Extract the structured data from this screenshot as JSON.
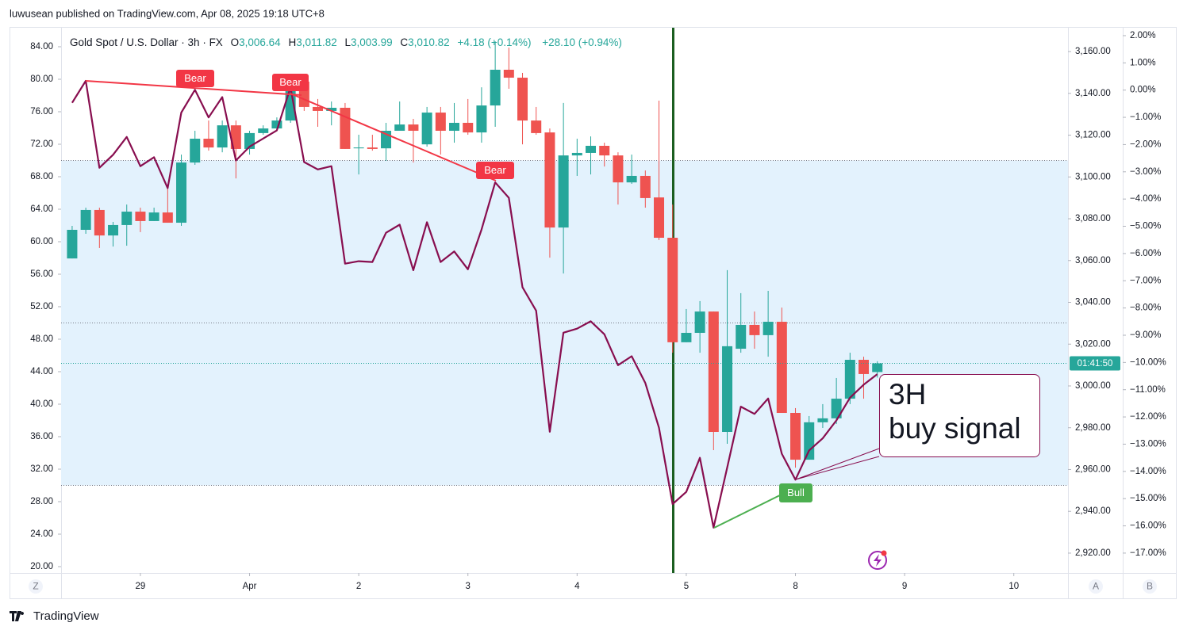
{
  "header": {
    "published": "luwusean published on TradingView.com, Apr 08, 2025 19:18 UTC+8"
  },
  "chart_data": [
    {
      "type": "candlestick",
      "title": "Gold Spot / U.S. Dollar · 3h · FX",
      "legend_values": [
        {
          "label": "O",
          "value": "3,006.64"
        },
        {
          "label": "H",
          "value": "3,011.82"
        },
        {
          "label": "L",
          "value": "3,003.99"
        },
        {
          "label": "C",
          "value": "3,010.82"
        }
      ],
      "change": "+4.18 (+0.14%)",
      "change_total": "+28.10 (+0.94%)",
      "countdown": "01:41:50",
      "up_color": "#26a69a",
      "down_color": "#ef5350",
      "x": [
        0,
        1,
        2,
        3,
        4,
        5,
        6,
        7,
        8,
        9,
        10,
        11,
        12,
        13,
        14,
        15,
        16,
        17,
        18,
        19,
        20,
        21,
        22,
        23,
        24,
        25,
        26,
        27,
        28,
        29,
        30,
        31,
        32,
        33,
        34,
        35,
        36,
        37,
        38,
        39,
        40,
        41,
        42,
        43,
        44,
        45,
        46,
        47,
        48,
        49,
        50,
        51,
        52,
        53,
        54,
        55,
        56,
        57,
        58,
        59
      ],
      "open": [
        3061.0,
        3074.7,
        3084.2,
        3072.0,
        3077.0,
        3083.4,
        3078.9,
        3083.0,
        3078.1,
        3106.9,
        3118.3,
        3114.1,
        3124.7,
        3113.4,
        3121.0,
        3123.2,
        3127.0,
        3145.6,
        3133.5,
        3131.6,
        3133.1,
        3113.7,
        3114.1,
        3113.7,
        3122.1,
        3125.1,
        3115.6,
        3130.8,
        3122.1,
        3125.9,
        3121.3,
        3134.2,
        3151.3,
        3147.5,
        3127.0,
        3121.3,
        3075.8,
        3110.3,
        3111.5,
        3114.9,
        3110.3,
        3097.4,
        3100.5,
        3090.2,
        3070.9,
        3020.9,
        3025.4,
        3035.6,
        2978.0,
        3017.8,
        3029.2,
        3024.3,
        3030.7,
        2987.1,
        2964.7,
        2982.6,
        2984.5,
        2993.9,
        3012.5,
        3006.64
      ],
      "high": [
        3076.6,
        3085.3,
        3085.3,
        3078.5,
        3086.8,
        3085.3,
        3085.3,
        3095.5,
        3110.7,
        3122.1,
        3127.0,
        3127.0,
        3127.0,
        3122.1,
        3124.7,
        3128.5,
        3148.6,
        3148.6,
        3137.3,
        3136.1,
        3135.4,
        3120.2,
        3120.2,
        3125.9,
        3136.1,
        3127.8,
        3133.5,
        3133.5,
        3135.4,
        3137.3,
        3142.9,
        3164.9,
        3161.9,
        3149.8,
        3133.5,
        3123.2,
        3135.4,
        3118.3,
        3119.4,
        3116.4,
        3111.8,
        3110.7,
        3103.1,
        3136.5,
        3086.8,
        3036.8,
        3040.6,
        3035.6,
        3055.4,
        3044.4,
        3035.6,
        3045.5,
        3037.5,
        2989.4,
        2985.6,
        2991.3,
        3003.8,
        3015.9,
        3014.0,
        3011.82
      ],
      "low": [
        3061.0,
        3072.8,
        3066.0,
        3066.7,
        3067.1,
        3073.6,
        3078.9,
        3078.1,
        3076.6,
        3105.8,
        3112.6,
        3111.8,
        3099.3,
        3110.7,
        3120.2,
        3122.1,
        3125.9,
        3131.6,
        3124.0,
        3124.7,
        3113.4,
        3101.2,
        3112.6,
        3107.7,
        3122.1,
        3106.9,
        3114.5,
        3110.7,
        3116.4,
        3120.2,
        3116.4,
        3124.0,
        3142.2,
        3115.6,
        3120.2,
        3061.4,
        3053.8,
        3100.5,
        3101.2,
        3105.0,
        3086.8,
        3096.7,
        3085.3,
        3069.8,
        3015.9,
        3020.9,
        3015.9,
        2969.3,
        2972.3,
        3015.9,
        3017.8,
        3014.0,
        2987.1,
        2960.9,
        2964.7,
        2979.9,
        2981.8,
        2991.3,
        2993.9,
        3003.99
      ],
      "close": [
        3074.7,
        3084.2,
        3072.0,
        3077.0,
        3083.4,
        3078.9,
        3083.0,
        3078.1,
        3106.9,
        3118.3,
        3114.1,
        3124.7,
        3113.4,
        3121.0,
        3123.2,
        3127.0,
        3145.6,
        3133.5,
        3131.6,
        3133.1,
        3113.4,
        3114.1,
        3113.4,
        3122.1,
        3125.1,
        3122.1,
        3130.8,
        3122.1,
        3125.9,
        3121.3,
        3134.2,
        3151.3,
        3147.5,
        3127.0,
        3121.0,
        3075.8,
        3110.3,
        3111.5,
        3114.9,
        3110.3,
        3097.4,
        3100.5,
        3089.9,
        3070.9,
        3020.9,
        3025.4,
        3035.6,
        2978.0,
        3019.0,
        3029.2,
        3024.3,
        3030.7,
        2987.1,
        2964.7,
        2982.6,
        2984.5,
        2993.9,
        3012.5,
        3005.7,
        3010.82
      ],
      "xlim": [
        -0.81,
        72.97
      ],
      "xticks": [
        {
          "value": 5,
          "label": "29"
        },
        {
          "value": 13,
          "label": "Apr"
        },
        {
          "value": 21,
          "label": "2"
        },
        {
          "value": 29,
          "label": "3"
        },
        {
          "value": 37,
          "label": "4"
        },
        {
          "value": 45,
          "label": "5"
        },
        {
          "value": 53,
          "label": "8"
        },
        {
          "value": 61,
          "label": "9"
        },
        {
          "value": 69,
          "label": "10"
        }
      ],
      "ylim": [
        2910.5,
        3171.4
      ],
      "yticks": [
        {
          "value": 2920,
          "label": "2,920.00"
        },
        {
          "value": 2940,
          "label": "2,940.00"
        },
        {
          "value": 2960,
          "label": "2,960.00"
        },
        {
          "value": 2980,
          "label": "2,980.00"
        },
        {
          "value": 3000,
          "label": "3,000.00"
        },
        {
          "value": 3020,
          "label": "3,020.00"
        },
        {
          "value": 3040,
          "label": "3,040.00"
        },
        {
          "value": 3060,
          "label": "3,060.00"
        },
        {
          "value": 3080,
          "label": "3,080.00"
        },
        {
          "value": 3100,
          "label": "3,100.00"
        },
        {
          "value": 3120,
          "label": "3,120.00"
        },
        {
          "value": 3140,
          "label": "3,140.00"
        },
        {
          "value": 3160,
          "label": "3,160.00"
        }
      ],
      "y2lim": [
        -17.73,
        2.29
      ],
      "y2ticks": [
        {
          "value": 2,
          "label": "2.00%"
        },
        {
          "value": 1,
          "label": "1.00%"
        },
        {
          "value": 0,
          "label": "0.00%"
        },
        {
          "value": -1,
          "label": "−1.00%"
        },
        {
          "value": -2,
          "label": "−2.00%"
        },
        {
          "value": -3,
          "label": "−3.00%"
        },
        {
          "value": -4,
          "label": "−4.00%"
        },
        {
          "value": -5,
          "label": "−5.00%"
        },
        {
          "value": -6,
          "label": "−6.00%"
        },
        {
          "value": -7,
          "label": "−7.00%"
        },
        {
          "value": -8,
          "label": "−8.00%"
        },
        {
          "value": -9,
          "label": "−9.00%"
        },
        {
          "value": -10,
          "label": "−10.00%"
        },
        {
          "value": -11,
          "label": "−11.00%"
        },
        {
          "value": -12,
          "label": "−12.00%"
        },
        {
          "value": -13,
          "label": "−13.00%"
        },
        {
          "value": -14,
          "label": "−14.00%"
        },
        {
          "value": -15,
          "label": "−15.00%"
        },
        {
          "value": -16,
          "label": "−16.00%"
        },
        {
          "value": -17,
          "label": "−17.00%"
        }
      ]
    },
    {
      "type": "line",
      "color": "#880e4f",
      "values": [
        77.1,
        79.8,
        69.1,
        70.7,
        72.9,
        69.3,
        70.4,
        66.6,
        75.9,
        78.7,
        75.3,
        77.8,
        70.0,
        71.7,
        72.7,
        73.7,
        79.0,
        69.8,
        68.9,
        69.3,
        57.3,
        57.6,
        57.5,
        61.1,
        62.1,
        56.5,
        62.4,
        57.5,
        58.8,
        56.6,
        61.5,
        67.3,
        65.4,
        54.4,
        51.5,
        36.6,
        48.8,
        49.3,
        50.2,
        48.6,
        44.8,
        45.9,
        42.6,
        37.1,
        27.7,
        29.2,
        33.4,
        24.8,
        32.2,
        39.7,
        38.8,
        40.7,
        33.9,
        30.7,
        34.3,
        35.8,
        38.0,
        40.8,
        42.4,
        43.7
      ],
      "levels": [
        30,
        50,
        70
      ],
      "band_color": "#e3f2fd",
      "ylim": [
        19.22,
        86.34
      ],
      "yticks": [
        {
          "value": 20,
          "label": "20.00"
        },
        {
          "value": 24,
          "label": "24.00"
        },
        {
          "value": 28,
          "label": "28.00"
        },
        {
          "value": 32,
          "label": "32.00"
        },
        {
          "value": 36,
          "label": "36.00"
        },
        {
          "value": 40,
          "label": "40.00"
        },
        {
          "value": 44,
          "label": "44.00"
        },
        {
          "value": 48,
          "label": "48.00"
        },
        {
          "value": 52,
          "label": "52.00"
        },
        {
          "value": 56,
          "label": "56.00"
        },
        {
          "value": 60,
          "label": "60.00"
        },
        {
          "value": 64,
          "label": "64.00"
        },
        {
          "value": 68,
          "label": "68.00"
        },
        {
          "value": 72,
          "label": "72.00"
        },
        {
          "value": 76,
          "label": "76.00"
        },
        {
          "value": 80,
          "label": "80.00"
        },
        {
          "value": 84,
          "label": "84.00"
        }
      ]
    }
  ],
  "annotations": {
    "bear_labels": [
      "Bear",
      "Bear",
      "Bear"
    ],
    "bull_label": "Bull",
    "callout": [
      "3H",
      "buy signal"
    ]
  },
  "toolbar": {
    "left": "Z",
    "right": [
      "A",
      "B"
    ]
  },
  "footer": {
    "brand": "TradingView"
  }
}
